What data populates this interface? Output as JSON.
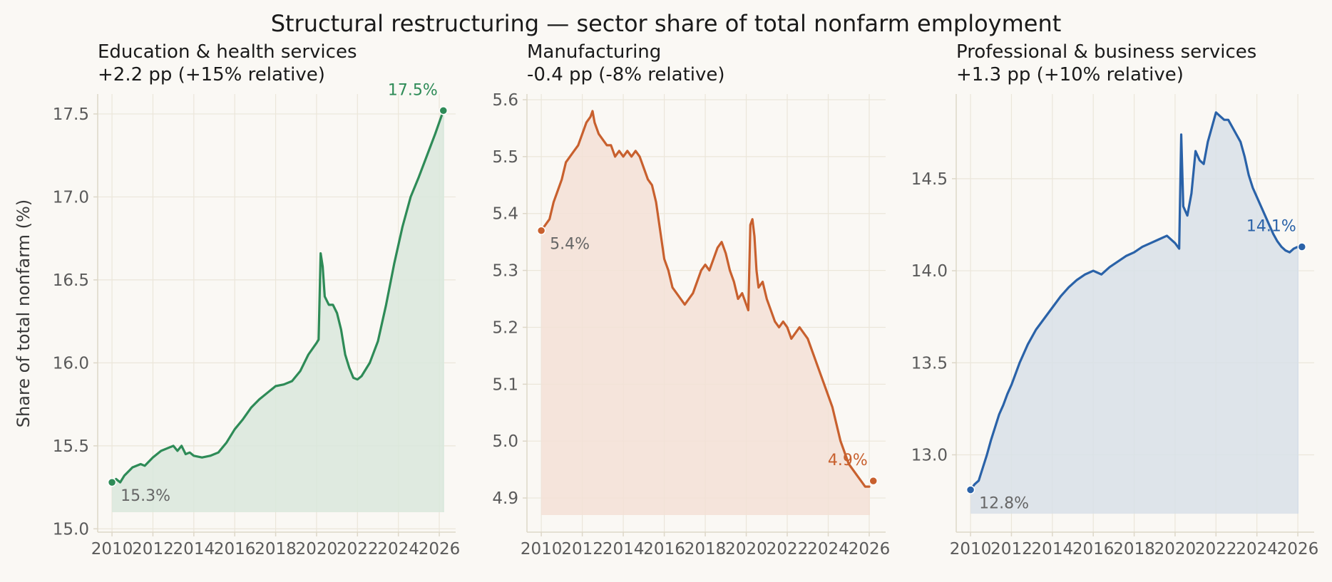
{
  "figure": {
    "title": "Structural restructuring — sector share of total nonfarm employment",
    "ylabel": "Share of total nonfarm (%)"
  },
  "colors": {
    "background": "#faf8f4",
    "axis": "#ddd7c8",
    "grid": "#ebe6da",
    "tick_text": "#5a5a5a",
    "title_text": "#1a1a1a",
    "muted_label": "#666666"
  },
  "chart_data": [
    {
      "type": "area",
      "title": "Education & health services",
      "subtitle": "+2.2 pp (+15% relative)",
      "color": "#2e8b57",
      "fill": "#d9e8dc",
      "xlim": [
        2009.3,
        2026.8
      ],
      "ylim": [
        14.98,
        17.62
      ],
      "x_ticks": [
        2010,
        2012,
        2014,
        2016,
        2018,
        2020,
        2022,
        2024,
        2026
      ],
      "x_tick_labels": [
        "2010",
        "2012",
        "2014",
        "2016",
        "2018",
        "2020",
        "2022",
        "2024",
        "2026"
      ],
      "y_ticks": [
        15.0,
        15.5,
        16.0,
        16.5,
        17.0,
        17.5
      ],
      "y_tick_labels": [
        "15.0",
        "15.5",
        "16.0",
        "16.5",
        "17.0",
        "17.5"
      ],
      "fill_base": 15.1,
      "start_point": {
        "x": 2010.0,
        "y": 15.28,
        "label": "15.3%"
      },
      "end_point": {
        "x": 2026.2,
        "y": 17.52,
        "label": "17.5%"
      },
      "x": [
        2010.0,
        2010.2,
        2010.4,
        2010.6,
        2011.0,
        2011.4,
        2011.6,
        2012.0,
        2012.4,
        2012.8,
        2013.0,
        2013.2,
        2013.4,
        2013.6,
        2013.8,
        2014.0,
        2014.4,
        2014.8,
        2015.2,
        2015.6,
        2016.0,
        2016.4,
        2016.8,
        2017.2,
        2017.6,
        2018.0,
        2018.4,
        2018.8,
        2019.2,
        2019.6,
        2020.0,
        2020.1,
        2020.2,
        2020.3,
        2020.4,
        2020.6,
        2020.8,
        2021.0,
        2021.2,
        2021.4,
        2021.6,
        2021.8,
        2022.0,
        2022.2,
        2022.6,
        2023.0,
        2023.4,
        2023.8,
        2024.2,
        2024.6,
        2025.0,
        2025.4,
        2025.8,
        2026.0,
        2026.2
      ],
      "y": [
        15.28,
        15.3,
        15.28,
        15.32,
        15.37,
        15.39,
        15.38,
        15.43,
        15.47,
        15.49,
        15.5,
        15.47,
        15.5,
        15.45,
        15.46,
        15.44,
        15.43,
        15.44,
        15.46,
        15.52,
        15.6,
        15.66,
        15.73,
        15.78,
        15.82,
        15.86,
        15.87,
        15.89,
        15.95,
        16.05,
        16.12,
        16.14,
        16.66,
        16.58,
        16.4,
        16.35,
        16.35,
        16.3,
        16.2,
        16.05,
        15.97,
        15.91,
        15.9,
        15.92,
        16.0,
        16.13,
        16.35,
        16.6,
        16.82,
        17.0,
        17.12,
        17.25,
        17.38,
        17.45,
        17.52
      ]
    },
    {
      "type": "area",
      "title": "Manufacturing",
      "subtitle": "-0.4 pp (-8% relative)",
      "color": "#c8602e",
      "fill": "#f3e1d6",
      "xlim": [
        2009.3,
        2026.8
      ],
      "ylim": [
        4.84,
        5.61
      ],
      "x_ticks": [
        2010,
        2012,
        2014,
        2016,
        2018,
        2020,
        2022,
        2024,
        2026
      ],
      "x_tick_labels": [
        "2010",
        "2012",
        "2014",
        "2016",
        "2018",
        "2020",
        "2022",
        "2024",
        "2026"
      ],
      "y_ticks": [
        4.9,
        5.0,
        5.1,
        5.2,
        5.3,
        5.4,
        5.5,
        5.6
      ],
      "y_tick_labels": [
        "4.9",
        "5.0",
        "5.1",
        "5.2",
        "5.3",
        "5.4",
        "5.5",
        "5.6"
      ],
      "fill_base": 4.87,
      "start_point": {
        "x": 2010.0,
        "y": 5.37,
        "label": "5.4%"
      },
      "end_point": {
        "x": 2026.2,
        "y": 4.93,
        "label": "4.9%"
      },
      "x": [
        2010.0,
        2010.2,
        2010.4,
        2010.6,
        2010.8,
        2011.0,
        2011.2,
        2011.4,
        2011.6,
        2011.8,
        2012.0,
        2012.2,
        2012.4,
        2012.5,
        2012.6,
        2012.8,
        2013.0,
        2013.2,
        2013.4,
        2013.6,
        2013.8,
        2014.0,
        2014.2,
        2014.4,
        2014.6,
        2014.8,
        2015.0,
        2015.2,
        2015.4,
        2015.6,
        2015.8,
        2016.0,
        2016.2,
        2016.4,
        2016.6,
        2016.8,
        2017.0,
        2017.2,
        2017.4,
        2017.6,
        2017.8,
        2018.0,
        2018.2,
        2018.4,
        2018.6,
        2018.8,
        2019.0,
        2019.2,
        2019.4,
        2019.6,
        2019.8,
        2020.0,
        2020.1,
        2020.2,
        2020.3,
        2020.4,
        2020.5,
        2020.6,
        2020.8,
        2021.0,
        2021.2,
        2021.4,
        2021.6,
        2021.8,
        2022.0,
        2022.2,
        2022.4,
        2022.6,
        2022.8,
        2023.0,
        2023.2,
        2023.4,
        2023.6,
        2023.8,
        2024.0,
        2024.2,
        2024.4,
        2024.6,
        2024.8,
        2025.0,
        2025.2,
        2025.4,
        2025.6,
        2025.8,
        2026.0
      ],
      "y": [
        5.37,
        5.38,
        5.39,
        5.42,
        5.44,
        5.46,
        5.49,
        5.5,
        5.51,
        5.52,
        5.54,
        5.56,
        5.57,
        5.58,
        5.56,
        5.54,
        5.53,
        5.52,
        5.52,
        5.5,
        5.51,
        5.5,
        5.51,
        5.5,
        5.51,
        5.5,
        5.48,
        5.46,
        5.45,
        5.42,
        5.37,
        5.32,
        5.3,
        5.27,
        5.26,
        5.25,
        5.24,
        5.25,
        5.26,
        5.28,
        5.3,
        5.31,
        5.3,
        5.32,
        5.34,
        5.35,
        5.33,
        5.3,
        5.28,
        5.25,
        5.26,
        5.24,
        5.23,
        5.38,
        5.39,
        5.36,
        5.3,
        5.27,
        5.28,
        5.25,
        5.23,
        5.21,
        5.2,
        5.21,
        5.2,
        5.18,
        5.19,
        5.2,
        5.19,
        5.18,
        5.16,
        5.14,
        5.12,
        5.1,
        5.08,
        5.06,
        5.03,
        5.0,
        4.98,
        4.96,
        4.95,
        4.94,
        4.93,
        4.92,
        4.92
      ]
    },
    {
      "type": "area",
      "title": "Professional & business services",
      "subtitle": "+1.3 pp (+10% relative)",
      "color": "#2a62a8",
      "fill": "#d8e0e8",
      "xlim": [
        2009.3,
        2026.8
      ],
      "ylim": [
        12.58,
        14.96
      ],
      "x_ticks": [
        2010,
        2012,
        2014,
        2016,
        2018,
        2020,
        2022,
        2024,
        2026
      ],
      "x_tick_labels": [
        "2010",
        "2012",
        "2014",
        "2016",
        "2018",
        "2020",
        "2022",
        "2024",
        "2026"
      ],
      "y_ticks": [
        13.0,
        13.5,
        14.0,
        14.5
      ],
      "y_tick_labels": [
        "13.0",
        "13.5",
        "14.0",
        "14.5"
      ],
      "fill_base": 12.68,
      "start_point": {
        "x": 2010.0,
        "y": 12.81,
        "label": "12.8%"
      },
      "end_point": {
        "x": 2026.2,
        "y": 14.13,
        "label": "14.1%"
      },
      "x": [
        2010.0,
        2010.2,
        2010.4,
        2010.6,
        2010.8,
        2011.0,
        2011.2,
        2011.4,
        2011.6,
        2011.8,
        2012.0,
        2012.4,
        2012.8,
        2013.2,
        2013.6,
        2014.0,
        2014.4,
        2014.8,
        2015.2,
        2015.6,
        2016.0,
        2016.4,
        2016.8,
        2017.2,
        2017.6,
        2018.0,
        2018.4,
        2018.8,
        2019.2,
        2019.6,
        2020.0,
        2020.2,
        2020.3,
        2020.4,
        2020.6,
        2020.8,
        2021.0,
        2021.2,
        2021.4,
        2021.6,
        2021.8,
        2022.0,
        2022.2,
        2022.4,
        2022.6,
        2022.8,
        2023.0,
        2023.2,
        2023.4,
        2023.6,
        2023.8,
        2024.0,
        2024.2,
        2024.4,
        2024.6,
        2024.8,
        2025.0,
        2025.2,
        2025.4,
        2025.6,
        2025.8,
        2026.0
      ],
      "y": [
        12.81,
        12.84,
        12.86,
        12.93,
        13.0,
        13.08,
        13.15,
        13.22,
        13.27,
        13.33,
        13.38,
        13.5,
        13.6,
        13.68,
        13.74,
        13.8,
        13.86,
        13.91,
        13.95,
        13.98,
        14.0,
        13.98,
        14.02,
        14.05,
        14.08,
        14.1,
        14.13,
        14.15,
        14.17,
        14.19,
        14.15,
        14.12,
        14.74,
        14.35,
        14.3,
        14.42,
        14.65,
        14.6,
        14.58,
        14.7,
        14.78,
        14.86,
        14.84,
        14.82,
        14.82,
        14.78,
        14.74,
        14.7,
        14.62,
        14.52,
        14.45,
        14.4,
        14.35,
        14.3,
        14.25,
        14.2,
        14.16,
        14.13,
        14.11,
        14.1,
        14.12,
        14.13
      ]
    }
  ]
}
